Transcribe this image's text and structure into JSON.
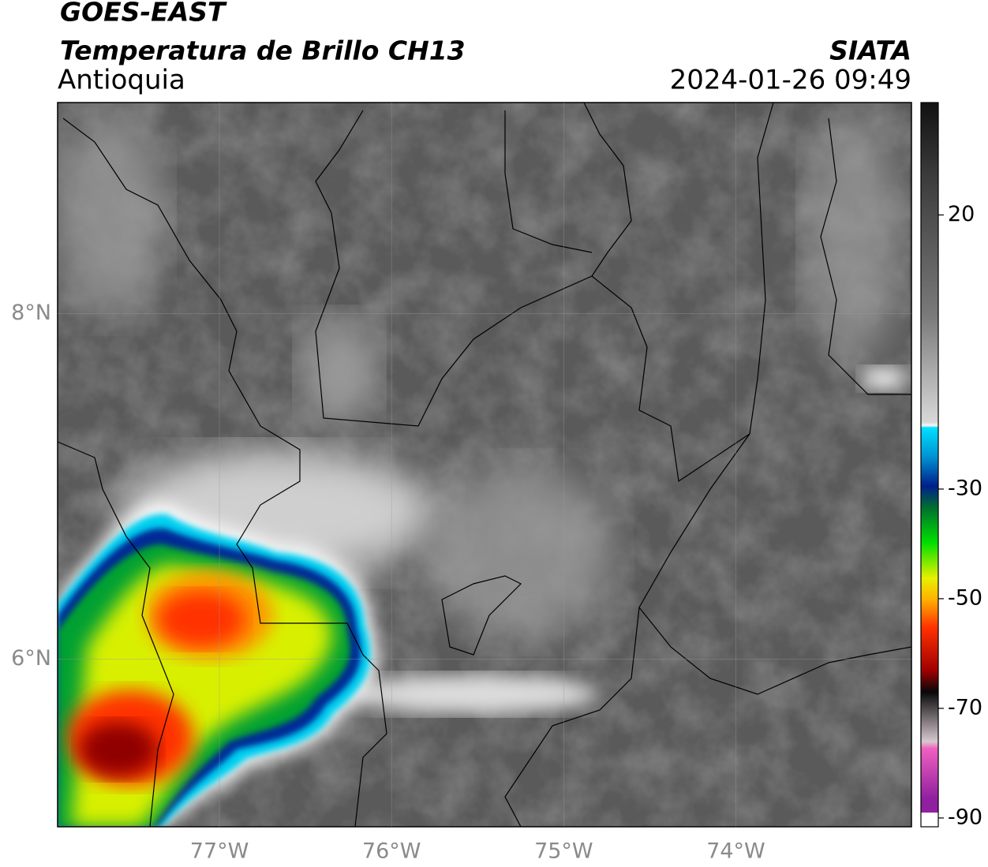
{
  "header": {
    "title": "GOES-EAST",
    "subtitle": "Temperatura de Brillo CH13",
    "region": "Antioquia",
    "source": "SIATA",
    "timestamp": "2024-01-26 09:49"
  },
  "map": {
    "xlim": [
      -77.94,
      -72.98
    ],
    "ylim": [
      5.03,
      9.22
    ],
    "xticks": [
      {
        "value": -77,
        "label": "77°W"
      },
      {
        "value": -76,
        "label": "76°W"
      },
      {
        "value": -75,
        "label": "75°W"
      },
      {
        "value": -74,
        "label": "74°W"
      }
    ],
    "yticks": [
      {
        "value": 8,
        "label": "8°N"
      },
      {
        "value": 6,
        "label": "6°N"
      }
    ]
  },
  "colorbar": {
    "lim": [
      -91.6,
      40.5
    ],
    "ticks": [
      20,
      -30,
      -50,
      -70,
      -90
    ]
  }
}
